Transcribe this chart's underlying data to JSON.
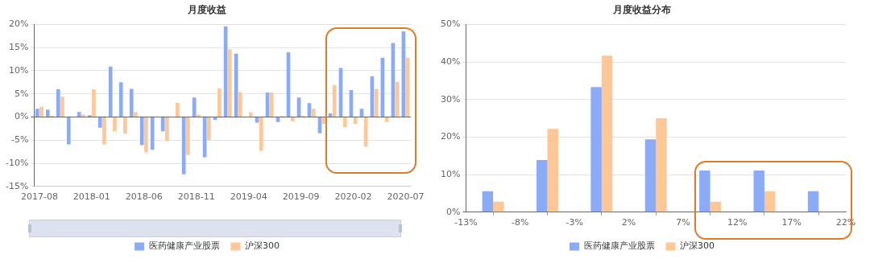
{
  "chart_data": [
    {
      "type": "bar",
      "title": "月度收益",
      "categories": [
        "2017-08",
        null,
        null,
        null,
        null,
        "2018-01",
        null,
        null,
        null,
        null,
        "2018-06",
        null,
        null,
        null,
        null,
        "2018-11",
        null,
        null,
        null,
        null,
        "2019-04",
        null,
        null,
        null,
        null,
        "2019-09",
        null,
        null,
        null,
        null,
        "2020-02",
        null,
        null,
        null,
        null,
        "2020-07"
      ],
      "series": [
        {
          "name": "医药健康产业股票",
          "color": "#8cabf7",
          "values": [
            1.8,
            1.6,
            6.0,
            -5.9,
            1.1,
            0.4,
            -2.3,
            10.9,
            7.5,
            6.1,
            -6.1,
            -7.1,
            -3.1,
            0,
            -12.4,
            4.2,
            -8.7,
            -0.6,
            19.6,
            13.7,
            0,
            -1.2,
            5.3,
            -1.1,
            14.0,
            4.2,
            3.0,
            -3.5,
            0.8,
            10.6,
            5.8,
            1.8,
            8.8,
            12.8,
            16.0,
            18.5
          ]
        },
        {
          "name": "沪深300",
          "color": "#fdc797",
          "values": [
            2.2,
            0.3,
            4.4,
            0,
            0.5,
            6.0,
            -5.9,
            -3.1,
            -3.6,
            1.1,
            -7.6,
            0,
            -5.2,
            3.1,
            -8.2,
            0.5,
            -5.0,
            6.2,
            14.6,
            5.4,
            1.0,
            -7.3,
            5.3,
            0.2,
            -0.9,
            0.3,
            1.8,
            -1.5,
            6.9,
            -2.2,
            -1.5,
            -6.4,
            6.1,
            -1.1,
            7.6,
            12.8
          ]
        }
      ],
      "ylim": [
        -15,
        20
      ],
      "yticks": [
        {
          "value": -15,
          "label": "-15%"
        },
        {
          "value": -10,
          "label": "-10%"
        },
        {
          "value": -5,
          "label": "-5%"
        },
        {
          "value": 0,
          "label": "0%"
        },
        {
          "value": 5,
          "label": "5%"
        },
        {
          "value": 10,
          "label": "10%"
        },
        {
          "value": 15,
          "label": "15%"
        },
        {
          "value": 20,
          "label": "20%"
        }
      ],
      "grid": "y",
      "legend": "bottom"
    },
    {
      "type": "histogram",
      "title": "月度收益分布",
      "bins": [
        -13,
        -8,
        -3,
        2,
        7,
        12,
        17,
        22
      ],
      "series": [
        {
          "name": "医药健康产业股票",
          "color": "#8cabf7",
          "values": [
            5.6,
            13.9,
            33.3,
            19.4,
            11.1,
            11.1,
            5.6
          ]
        },
        {
          "name": "沪深300",
          "color": "#fdc797",
          "values": [
            2.8,
            22.2,
            41.7,
            25.0,
            2.8,
            5.6,
            0
          ]
        }
      ],
      "xlim": [
        -13,
        22
      ],
      "xticks": [
        {
          "value": -13,
          "label": "-13%"
        },
        {
          "value": -8,
          "label": "-8%"
        },
        {
          "value": -3,
          "label": "-3%"
        },
        {
          "value": 2,
          "label": "2%"
        },
        {
          "value": 7,
          "label": "7%"
        },
        {
          "value": 12,
          "label": "12%"
        },
        {
          "value": 17,
          "label": "17%"
        },
        {
          "value": 22,
          "label": "22%"
        }
      ],
      "ylim": [
        0,
        50
      ],
      "yticks": [
        {
          "value": 0,
          "label": "0%"
        },
        {
          "value": 10,
          "label": "10%"
        },
        {
          "value": 20,
          "label": "20%"
        },
        {
          "value": 30,
          "label": "30%"
        },
        {
          "value": 40,
          "label": "40%"
        },
        {
          "value": 50,
          "label": "50%"
        }
      ],
      "grid": "y",
      "legend": "bottom"
    }
  ]
}
